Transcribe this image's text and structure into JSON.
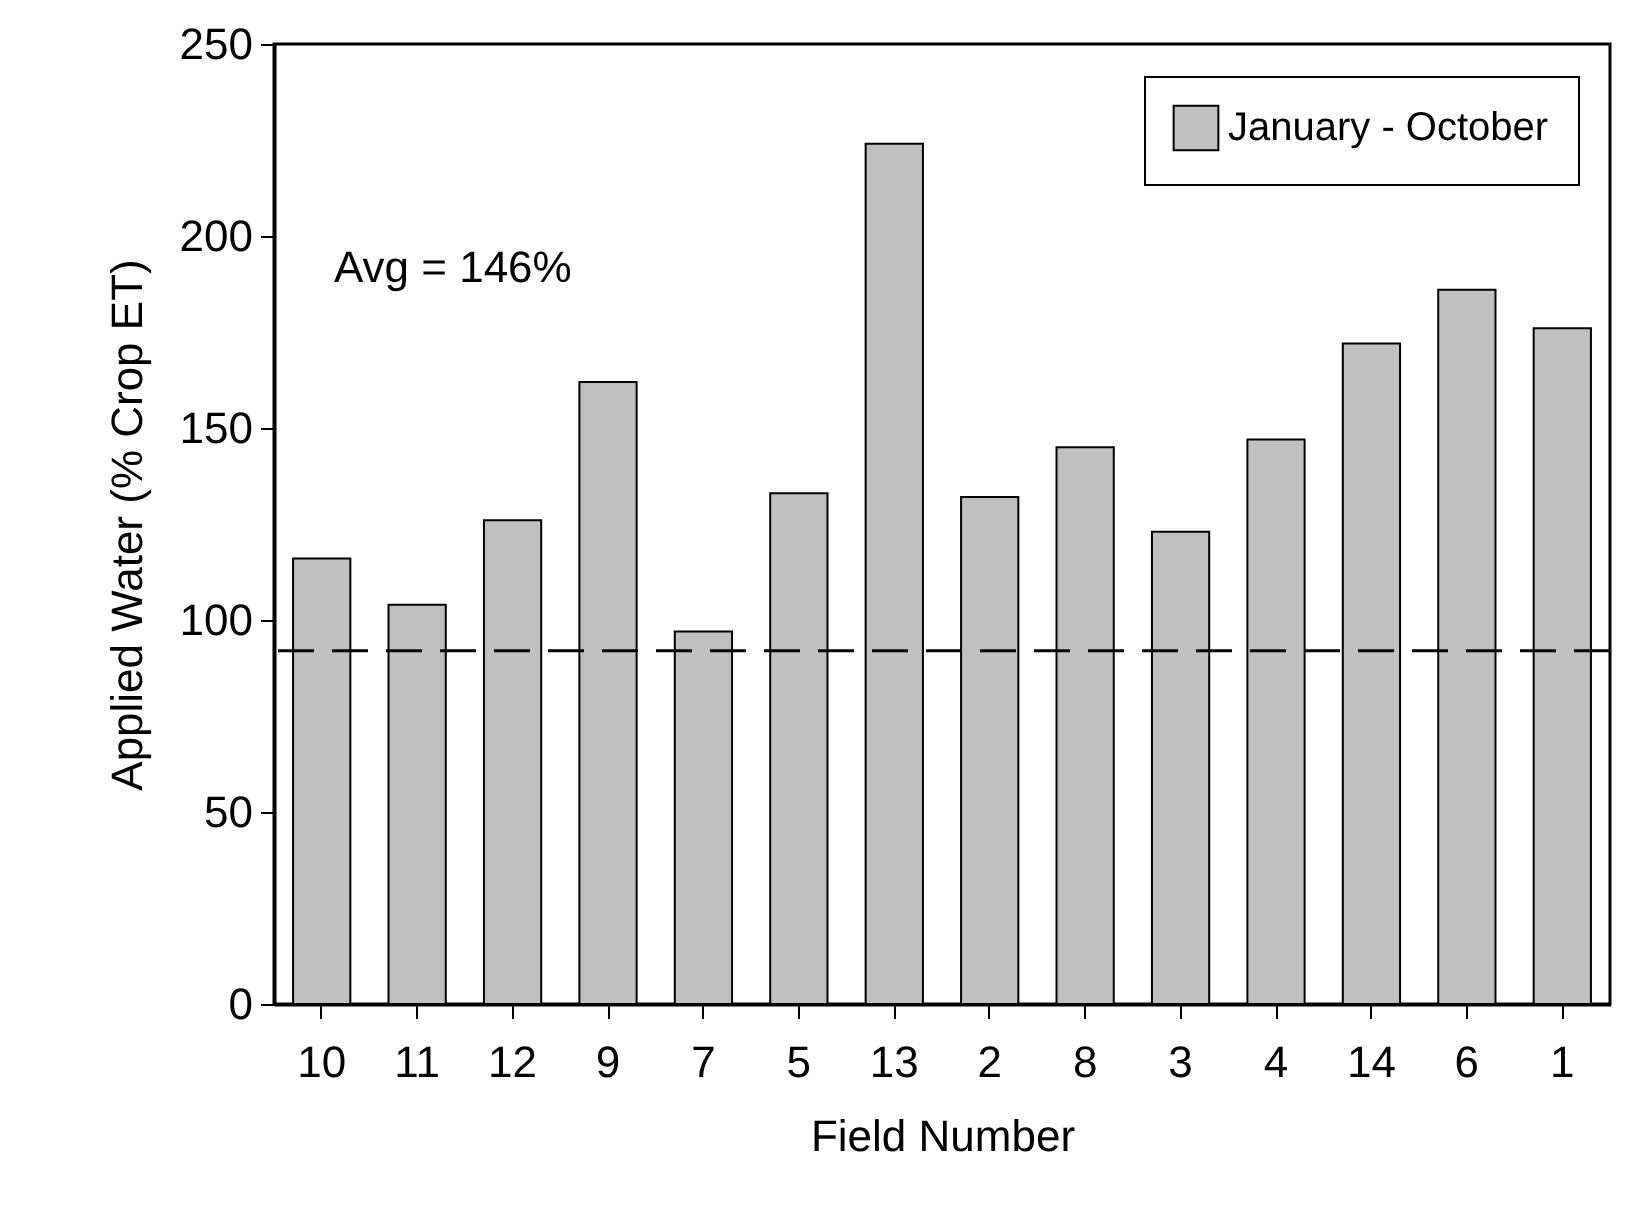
{
  "chart_data": {
    "type": "bar",
    "xlabel": "Field Number",
    "ylabel": "Applied Water (% Crop ET)",
    "categories": [
      "10",
      "11",
      "12",
      "9",
      "7",
      "5",
      "13",
      "2",
      "8",
      "3",
      "4",
      "14",
      "6",
      "1"
    ],
    "series": [
      {
        "name": "January - October",
        "color": "#c0c0c0",
        "values": [
          116,
          104,
          126,
          162,
          97,
          133,
          224,
          132,
          145,
          123,
          147,
          172,
          186,
          176
        ]
      }
    ],
    "ylim": [
      0,
      250
    ],
    "yticks": [
      0,
      50,
      100,
      150,
      200,
      250
    ],
    "grid": false,
    "legend": "top right",
    "ref_lines": [
      {
        "axis": "y",
        "value": 92,
        "color": "#000000",
        "line_style": "dashed"
      }
    ],
    "annotations": [
      "Avg = 146%"
    ]
  }
}
